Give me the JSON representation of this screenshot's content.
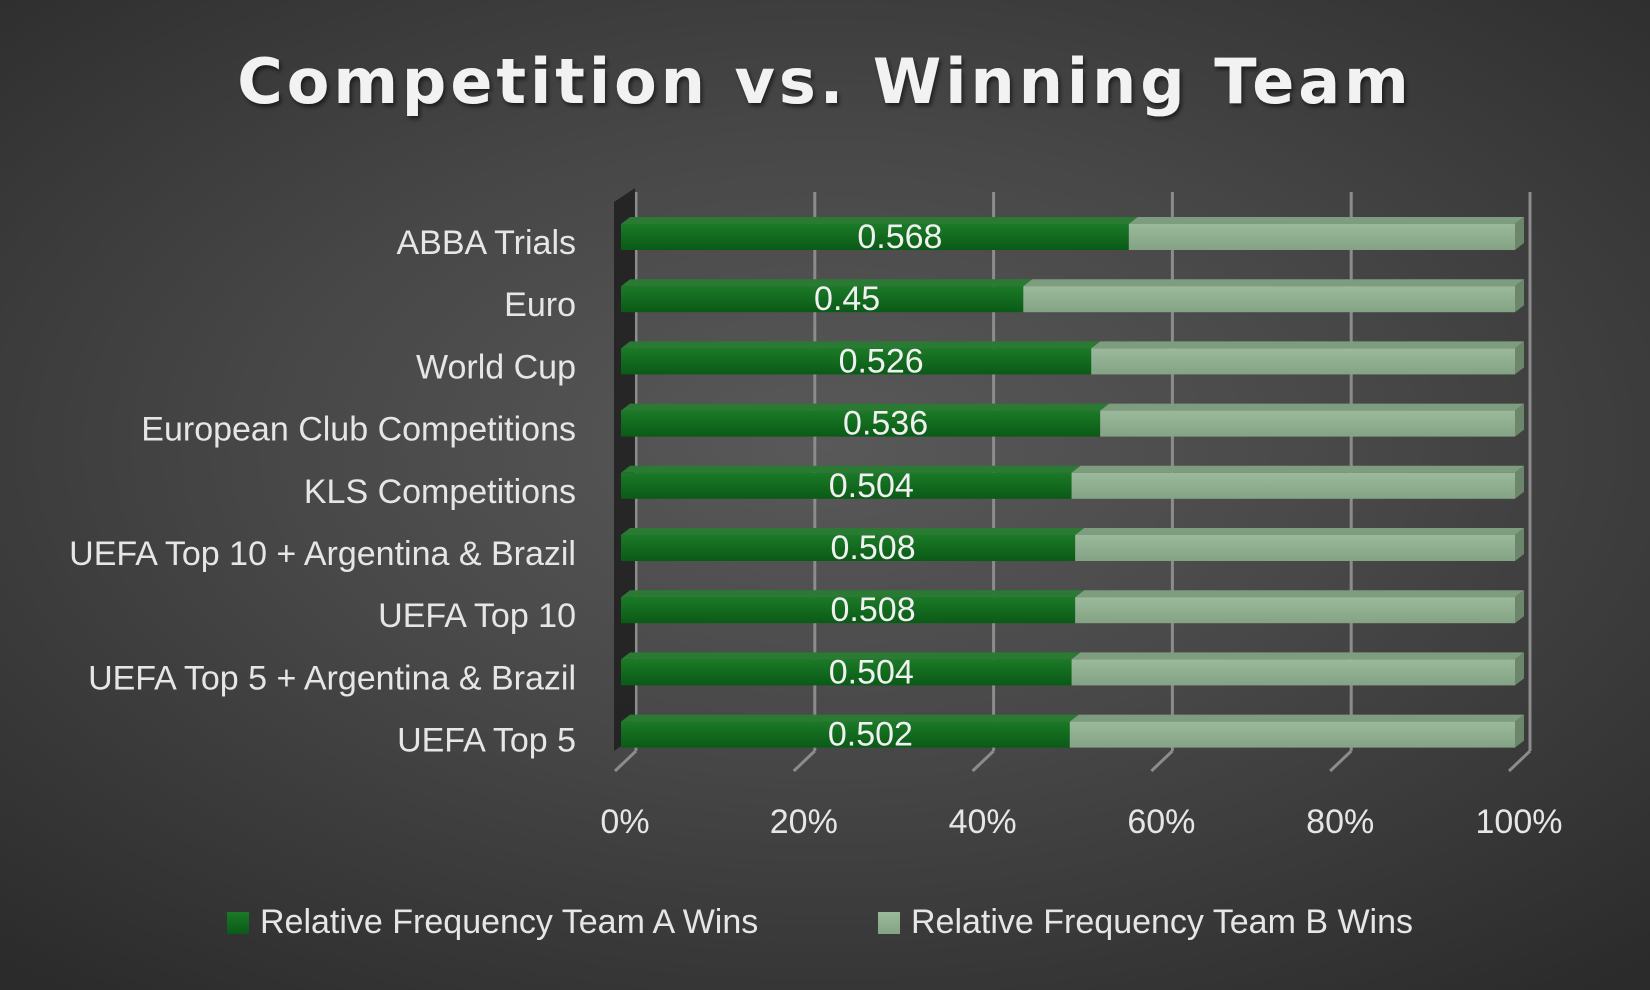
{
  "chart_data": {
    "type": "bar",
    "orientation": "horizontal",
    "stacked": "100%",
    "title": "Competition vs. Winning Team",
    "categories": [
      "ABBA Trials",
      "Euro",
      "World Cup",
      "European Club Competitions",
      "KLS Competitions",
      "UEFA Top 10 + Argentina & Brazil",
      "UEFA Top 10",
      "UEFA Top 5 + Argentina & Brazil",
      "UEFA Top 5"
    ],
    "series": [
      {
        "name": "Relative Frequency Team A Wins",
        "color": "#0e6b1c",
        "values": [
          0.568,
          0.45,
          0.526,
          0.536,
          0.504,
          0.508,
          0.508,
          0.504,
          0.502
        ],
        "labels": [
          "0.568",
          "0.45",
          "0.526",
          "0.536",
          "0.504",
          "0.508",
          "0.508",
          "0.504",
          "0.502"
        ]
      },
      {
        "name": "Relative Frequency Team B Wins",
        "color": "#8fae8f",
        "values": [
          0.432,
          0.55,
          0.474,
          0.464,
          0.496,
          0.492,
          0.492,
          0.496,
          0.498
        ]
      }
    ],
    "x_ticks": [
      "0%",
      "20%",
      "40%",
      "60%",
      "80%",
      "100%"
    ],
    "xlim": [
      0,
      1
    ],
    "grid": true,
    "legend": "bottom"
  }
}
